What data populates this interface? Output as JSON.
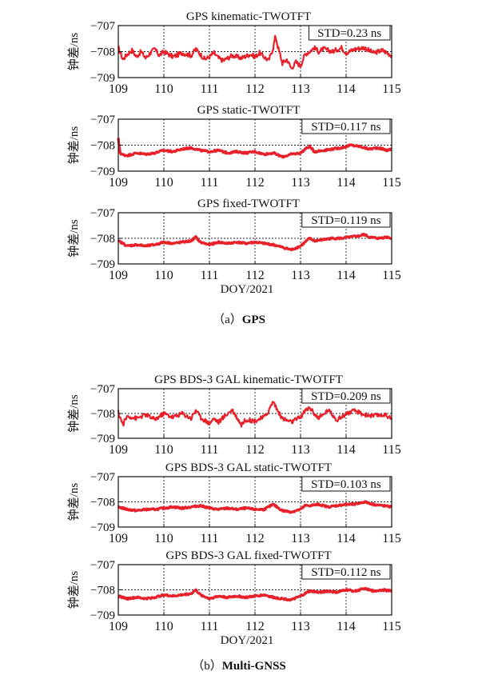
{
  "figure": {
    "caption_a_prefix": "（a）",
    "caption_a_bold": "GPS",
    "caption_b_prefix": "（b）",
    "caption_b_bold": "Multi-GNSS",
    "line_color": "#e8202a"
  },
  "chart_data": [
    {
      "type": "line",
      "title": "GPS kinematic-TWOTFT",
      "annotation": "STD=0.23 ns",
      "ylabel": "钟差/ns",
      "xlabel": "",
      "xlim": [
        109,
        115
      ],
      "ylim": [
        -709,
        -707
      ],
      "xticks": [
        109,
        110,
        111,
        112,
        113,
        114,
        115
      ],
      "yticks": [
        -707,
        -708,
        -709
      ],
      "grid": true,
      "series": [
        {
          "x": [
            109.0,
            109.1,
            109.2,
            109.3,
            109.4,
            109.5,
            109.6,
            109.7,
            109.8,
            109.9,
            110.0,
            110.2,
            110.4,
            110.6,
            110.7,
            110.8,
            110.9,
            111.0,
            111.1,
            111.2,
            111.3,
            111.5,
            111.7,
            111.9,
            112.0,
            112.1,
            112.2,
            112.3,
            112.4,
            112.45,
            112.5,
            112.55,
            112.6,
            112.7,
            112.8,
            112.9,
            113.0,
            113.1,
            113.2,
            113.3,
            113.4,
            113.5,
            113.7,
            113.9,
            114.0,
            114.2,
            114.4,
            114.6,
            114.8,
            115.0
          ],
          "y": [
            -707.85,
            -708.3,
            -708.1,
            -707.95,
            -708.2,
            -708.0,
            -708.25,
            -708.05,
            -707.9,
            -708.15,
            -708.0,
            -708.2,
            -708.05,
            -708.15,
            -707.9,
            -708.1,
            -708.3,
            -708.2,
            -708.05,
            -708.25,
            -708.35,
            -708.15,
            -708.25,
            -708.1,
            -708.2,
            -708.05,
            -708.2,
            -708.35,
            -707.85,
            -707.4,
            -707.8,
            -708.1,
            -708.45,
            -708.3,
            -708.65,
            -708.4,
            -708.55,
            -708.1,
            -708.0,
            -707.85,
            -708.0,
            -707.9,
            -708.0,
            -707.85,
            -708.05,
            -707.9,
            -707.85,
            -708.05,
            -707.95,
            -708.15
          ]
        }
      ]
    },
    {
      "type": "line",
      "title": "GPS static-TWOTFT",
      "annotation": "STD=0.117 ns",
      "ylabel": "钟差/ns",
      "xlabel": "",
      "xlim": [
        109,
        115
      ],
      "ylim": [
        -709,
        -707
      ],
      "xticks": [
        109,
        110,
        111,
        112,
        113,
        114,
        115
      ],
      "yticks": [
        -707,
        -708,
        -709
      ],
      "grid": true,
      "series": [
        {
          "x": [
            109.0,
            109.05,
            109.2,
            109.4,
            109.6,
            109.8,
            110.0,
            110.2,
            110.4,
            110.6,
            110.8,
            111.0,
            111.2,
            111.4,
            111.6,
            111.8,
            112.0,
            112.2,
            112.4,
            112.6,
            112.8,
            113.0,
            113.1,
            113.2,
            113.3,
            113.5,
            113.7,
            113.9,
            114.1,
            114.3,
            114.5,
            114.7,
            114.9,
            115.0
          ],
          "y": [
            -707.75,
            -708.35,
            -708.4,
            -708.3,
            -708.35,
            -708.3,
            -708.2,
            -708.25,
            -708.15,
            -708.1,
            -708.2,
            -708.25,
            -708.2,
            -708.3,
            -708.25,
            -708.3,
            -708.25,
            -708.35,
            -708.3,
            -708.45,
            -708.35,
            -708.3,
            -708.15,
            -708.05,
            -708.25,
            -708.2,
            -708.15,
            -708.1,
            -708.0,
            -708.05,
            -708.15,
            -708.1,
            -708.2,
            -708.15
          ]
        }
      ]
    },
    {
      "type": "line",
      "title": "GPS fixed-TWOTFT",
      "annotation": "STD=0.119 ns",
      "ylabel": "钟差/ns",
      "xlabel": "DOY/2021",
      "xlim": [
        109,
        115
      ],
      "ylim": [
        -709,
        -707
      ],
      "xticks": [
        109,
        110,
        111,
        112,
        113,
        114,
        115
      ],
      "yticks": [
        -707,
        -708,
        -709
      ],
      "grid": true,
      "series": [
        {
          "x": [
            109.0,
            109.2,
            109.4,
            109.6,
            109.8,
            110.0,
            110.2,
            110.4,
            110.6,
            110.7,
            110.8,
            111.0,
            111.2,
            111.4,
            111.6,
            111.8,
            112.0,
            112.2,
            112.4,
            112.6,
            112.8,
            113.0,
            113.1,
            113.2,
            113.3,
            113.5,
            113.7,
            113.9,
            114.1,
            114.3,
            114.4,
            114.5,
            114.7,
            114.9,
            115.0
          ],
          "y": [
            -708.1,
            -708.3,
            -708.25,
            -708.3,
            -708.25,
            -708.15,
            -708.2,
            -708.15,
            -708.1,
            -707.95,
            -708.15,
            -708.25,
            -708.15,
            -708.2,
            -708.15,
            -708.2,
            -708.15,
            -708.2,
            -708.25,
            -708.35,
            -708.45,
            -708.3,
            -708.15,
            -708.0,
            -708.1,
            -708.05,
            -708.0,
            -708.0,
            -707.95,
            -707.9,
            -707.85,
            -707.95,
            -708.0,
            -707.95,
            -708.0
          ]
        }
      ]
    },
    {
      "type": "line",
      "title": "GPS BDS-3 GAL kinematic-TWOTFT",
      "annotation": "STD=0.209 ns",
      "ylabel": "钟差/ns",
      "xlabel": "",
      "xlim": [
        109,
        115
      ],
      "ylim": [
        -709,
        -707
      ],
      "xticks": [
        109,
        110,
        111,
        112,
        113,
        114,
        115
      ],
      "yticks": [
        -707,
        -708,
        -709
      ],
      "grid": true,
      "series": [
        {
          "x": [
            109.0,
            109.1,
            109.2,
            109.4,
            109.6,
            109.8,
            110.0,
            110.2,
            110.4,
            110.6,
            110.7,
            110.8,
            111.0,
            111.1,
            111.2,
            111.4,
            111.5,
            111.6,
            111.7,
            111.8,
            112.0,
            112.2,
            112.3,
            112.4,
            112.5,
            112.6,
            112.8,
            113.0,
            113.1,
            113.2,
            113.3,
            113.4,
            113.5,
            113.6,
            113.7,
            113.8,
            113.9,
            114.0,
            114.2,
            114.4,
            114.6,
            114.8,
            115.0
          ],
          "y": [
            -707.95,
            -708.45,
            -708.1,
            -708.2,
            -708.05,
            -708.25,
            -708.0,
            -708.15,
            -708.0,
            -708.2,
            -707.85,
            -708.15,
            -708.4,
            -708.2,
            -708.35,
            -708.0,
            -707.85,
            -708.15,
            -708.45,
            -708.25,
            -708.3,
            -708.15,
            -707.9,
            -707.5,
            -707.9,
            -708.2,
            -708.35,
            -708.15,
            -707.9,
            -707.75,
            -708.0,
            -708.2,
            -708.05,
            -707.85,
            -708.05,
            -708.25,
            -708.15,
            -708.0,
            -707.9,
            -708.05,
            -708.1,
            -708.05,
            -708.15
          ]
        }
      ]
    },
    {
      "type": "line",
      "title": "GPS BDS-3 GAL static-TWOTFT",
      "annotation": "STD=0.103 ns",
      "ylabel": "钟差/ns",
      "xlabel": "",
      "xlim": [
        109,
        115
      ],
      "ylim": [
        -709,
        -707
      ],
      "xticks": [
        109,
        110,
        111,
        112,
        113,
        114,
        115
      ],
      "yticks": [
        -707,
        -708,
        -709
      ],
      "grid": true,
      "series": [
        {
          "x": [
            109.0,
            109.2,
            109.4,
            109.6,
            109.8,
            110.0,
            110.2,
            110.4,
            110.6,
            110.8,
            111.0,
            111.2,
            111.4,
            111.6,
            111.8,
            112.0,
            112.2,
            112.4,
            112.6,
            112.8,
            113.0,
            113.1,
            113.2,
            113.4,
            113.6,
            113.8,
            114.0,
            114.2,
            114.4,
            114.6,
            114.8,
            115.0
          ],
          "y": [
            -708.2,
            -708.3,
            -708.35,
            -708.3,
            -708.3,
            -708.25,
            -708.2,
            -708.25,
            -708.2,
            -708.15,
            -708.25,
            -708.3,
            -708.25,
            -708.3,
            -708.25,
            -708.3,
            -708.3,
            -708.1,
            -708.35,
            -708.4,
            -708.3,
            -708.15,
            -708.15,
            -708.1,
            -708.2,
            -708.15,
            -708.1,
            -708.1,
            -708.0,
            -708.1,
            -708.15,
            -708.2
          ]
        }
      ]
    },
    {
      "type": "line",
      "title": "GPS BDS-3 GAL fixed-TWOTFT",
      "annotation": "STD=0.112 ns",
      "ylabel": "钟差/ns",
      "xlabel": "DOY/2021",
      "xlim": [
        109,
        115
      ],
      "ylim": [
        -709,
        -707
      ],
      "xticks": [
        109,
        110,
        111,
        112,
        113,
        114,
        115
      ],
      "yticks": [
        -707,
        -708,
        -709
      ],
      "grid": true,
      "series": [
        {
          "x": [
            109.0,
            109.2,
            109.4,
            109.6,
            109.8,
            110.0,
            110.2,
            110.4,
            110.6,
            110.7,
            110.8,
            111.0,
            111.2,
            111.4,
            111.6,
            111.8,
            112.0,
            112.2,
            112.4,
            112.6,
            112.8,
            113.0,
            113.2,
            113.4,
            113.6,
            113.8,
            114.0,
            114.2,
            114.4,
            114.6,
            114.8,
            115.0
          ],
          "y": [
            -708.25,
            -708.35,
            -708.3,
            -708.35,
            -708.3,
            -708.2,
            -708.25,
            -708.2,
            -708.15,
            -708.0,
            -708.2,
            -708.35,
            -708.25,
            -708.3,
            -708.25,
            -708.3,
            -708.25,
            -708.2,
            -708.3,
            -708.35,
            -708.4,
            -708.25,
            -708.05,
            -708.1,
            -708.05,
            -708.1,
            -708.0,
            -708.05,
            -707.95,
            -708.05,
            -708.0,
            -708.05
          ]
        }
      ]
    }
  ]
}
